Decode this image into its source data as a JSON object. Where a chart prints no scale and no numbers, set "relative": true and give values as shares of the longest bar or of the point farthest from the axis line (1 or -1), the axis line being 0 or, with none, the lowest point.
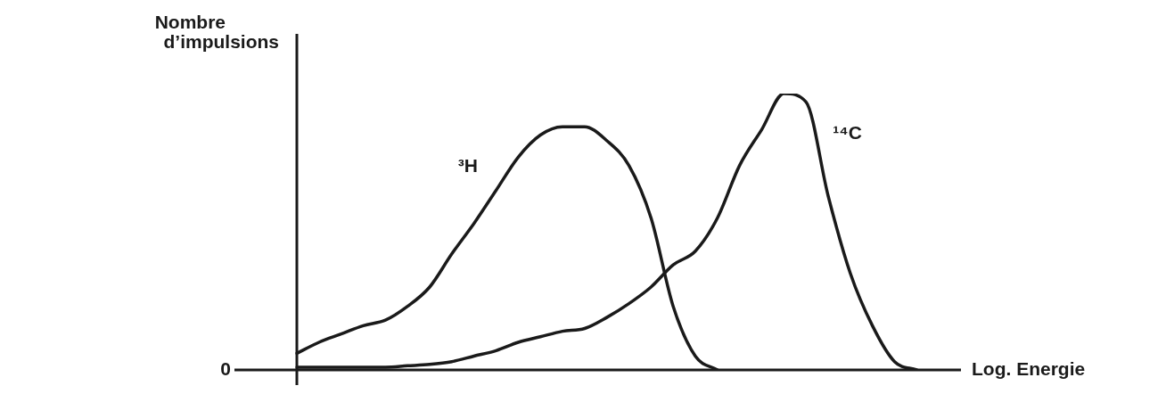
{
  "chart_data": {
    "type": "line",
    "relative": true,
    "xlabel": "Log. Energie",
    "ylabel": "Nombre\nd’impulsions",
    "annotations": [
      "0"
    ],
    "categories": [
      null,
      null,
      null,
      null,
      null,
      null,
      null,
      null,
      null,
      null,
      null,
      null,
      null,
      null,
      null,
      null,
      null,
      null,
      null,
      null,
      null,
      null,
      null,
      null,
      null,
      null,
      null,
      null,
      null,
      null,
      null
    ],
    "series": [
      {
        "name": "³H",
        "color": "#1a1a1a",
        "values": [
          0.06,
          0.1,
          0.13,
          0.16,
          0.18,
          0.23,
          0.3,
          0.42,
          0.53,
          0.65,
          0.77,
          0.85,
          0.88,
          0.88,
          0.83,
          0.74,
          0.55,
          0.23,
          0.05,
          0,
          null,
          null,
          null,
          null,
          null,
          null,
          null,
          null,
          null,
          null,
          null
        ]
      },
      {
        "name": "¹⁴C",
        "color": "#1a1a1a",
        "values": [
          0.01,
          0.01,
          0.01,
          0.01,
          0.01,
          0.015,
          0.02,
          0.03,
          0.05,
          0.07,
          0.1,
          0.12,
          0.14,
          0.15,
          0.19,
          0.24,
          0.3,
          0.38,
          0.43,
          0.55,
          0.74,
          0.87,
          1,
          0.97,
          0.63,
          0.35,
          0.16,
          0.03,
          0,
          null,
          null
        ]
      }
    ]
  }
}
